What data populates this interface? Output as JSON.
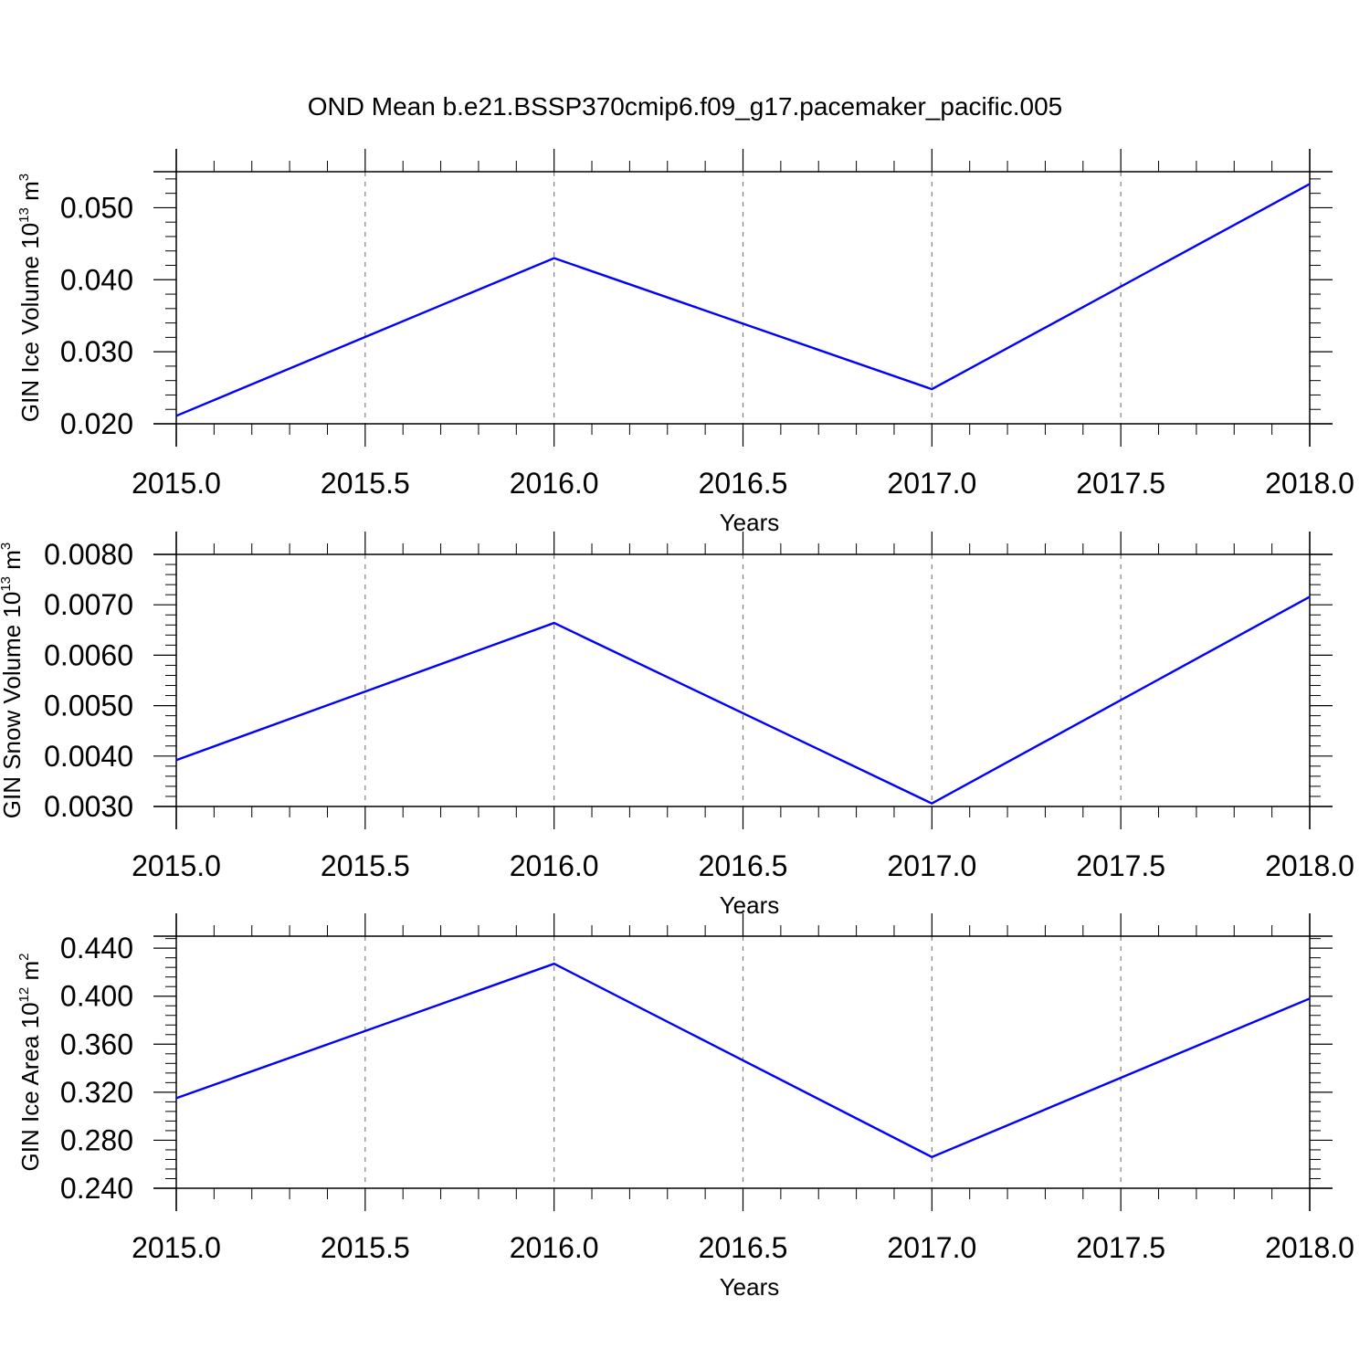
{
  "title": "OND Mean b.e21.BSSP370cmip6.f09_g17.pacemaker_pacific.005",
  "colors": {
    "line": "#0000ff",
    "axis": "#000000",
    "grid": "#808080"
  },
  "chart_data": [
    {
      "type": "line",
      "xlabel": "Years",
      "ylabel": {
        "prefix": "GIN Ice Volume 10",
        "sup1": "13",
        "middle": " m",
        "sup2": "3"
      },
      "x": [
        2015,
        2016,
        2017,
        2018
      ],
      "series": [
        {
          "values": [
            0.0211,
            0.043,
            0.0248,
            0.0533
          ]
        }
      ],
      "xlim": [
        2015,
        2018
      ],
      "ylim": [
        0.02,
        0.055
      ],
      "xticks": [
        2015.0,
        2015.5,
        2016.0,
        2016.5,
        2017.0,
        2017.5,
        2018.0
      ],
      "xtick_labels": [
        "2015.0",
        "2015.5",
        "2016.0",
        "2016.5",
        "2017.0",
        "2017.5",
        "2018.0"
      ],
      "yticks": [
        0.02,
        0.03,
        0.04,
        0.05
      ],
      "ytick_labels": [
        "0.020",
        "0.030",
        "0.040",
        "0.050"
      ],
      "grid": "vertical-dashed"
    },
    {
      "type": "line",
      "xlabel": "Years",
      "ylabel": {
        "prefix": "GIN Snow Volume 10",
        "sup1": "13",
        "middle": " m",
        "sup2": "3"
      },
      "x": [
        2015,
        2016,
        2017,
        2018
      ],
      "series": [
        {
          "values": [
            0.00392,
            0.00664,
            0.00306,
            0.00716
          ]
        }
      ],
      "xlim": [
        2015,
        2018
      ],
      "ylim": [
        0.003,
        0.008
      ],
      "xticks": [
        2015.0,
        2015.5,
        2016.0,
        2016.5,
        2017.0,
        2017.5,
        2018.0
      ],
      "xtick_labels": [
        "2015.0",
        "2015.5",
        "2016.0",
        "2016.5",
        "2017.0",
        "2017.5",
        "2018.0"
      ],
      "yticks": [
        0.003,
        0.004,
        0.005,
        0.006,
        0.007,
        0.008
      ],
      "ytick_labels": [
        "0.0030",
        "0.0040",
        "0.0050",
        "0.0060",
        "0.0070",
        "0.0080"
      ],
      "grid": "vertical-dashed"
    },
    {
      "type": "line",
      "xlabel": "Years",
      "ylabel": {
        "prefix": "GIN Ice Area 10",
        "sup1": "12",
        "middle": " m",
        "sup2": "2"
      },
      "x": [
        2015,
        2016,
        2017,
        2018
      ],
      "series": [
        {
          "values": [
            0.315,
            0.427,
            0.266,
            0.398
          ]
        }
      ],
      "xlim": [
        2015,
        2018
      ],
      "ylim": [
        0.24,
        0.45
      ],
      "xticks": [
        2015.0,
        2015.5,
        2016.0,
        2016.5,
        2017.0,
        2017.5,
        2018.0
      ],
      "xtick_labels": [
        "2015.0",
        "2015.5",
        "2016.0",
        "2016.5",
        "2017.0",
        "2017.5",
        "2018.0"
      ],
      "yticks": [
        0.24,
        0.28,
        0.32,
        0.36,
        0.4,
        0.44
      ],
      "ytick_labels": [
        "0.240",
        "0.280",
        "0.320",
        "0.360",
        "0.400",
        "0.440"
      ],
      "grid": "vertical-dashed"
    }
  ]
}
